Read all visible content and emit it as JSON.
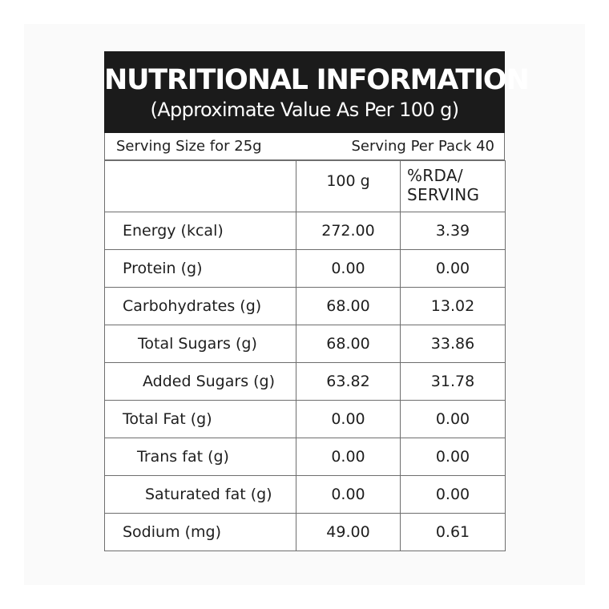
{
  "label": {
    "title": "NUTRITIONAL INFORMATION",
    "subtitle": "(Approximate Value As Per 100 g)",
    "serving_size": "Serving Size for 25g",
    "servings_per_pack": "Serving Per Pack 40",
    "columns": {
      "per_100g": "100 g",
      "rda_line1": "%RDA/",
      "rda_line2": "SERVING"
    },
    "rows": [
      {
        "name": "Energy (kcal)",
        "per_100g": "272.00",
        "rda": "3.39"
      },
      {
        "name": "Protein (g)",
        "per_100g": "0.00",
        "rda": "0.00"
      },
      {
        "name": "Carbohydrates (g)",
        "per_100g": "68.00",
        "rda": "13.02"
      },
      {
        "name": "Total Sugars (g)",
        "per_100g": "68.00",
        "rda": "33.86"
      },
      {
        "name": "Added Sugars (g)",
        "per_100g": "63.82",
        "rda": "31.78"
      },
      {
        "name": "Total Fat (g)",
        "per_100g": "0.00",
        "rda": "0.00"
      },
      {
        "name": "Trans fat (g)",
        "per_100g": "0.00",
        "rda": "0.00"
      },
      {
        "name": "Saturated fat (g)",
        "per_100g": "0.00",
        "rda": "0.00"
      },
      {
        "name": "Sodium (mg)",
        "per_100g": "49.00",
        "rda": "0.61"
      }
    ]
  }
}
